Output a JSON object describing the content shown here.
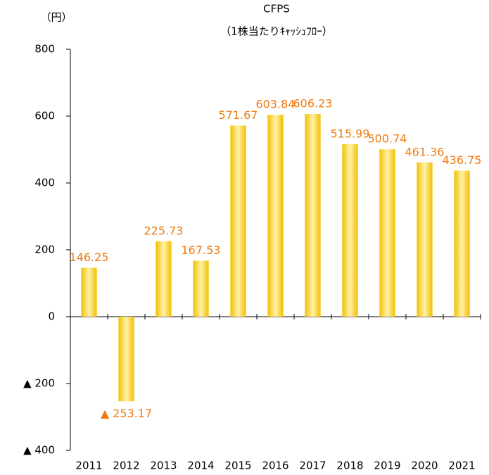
{
  "chart_data": {
    "type": "bar",
    "title": "CFPS",
    "subtitle": "（1株当たりｷｬｯｼｭﾌﾛｰ）",
    "y_unit": "（円）",
    "categories": [
      "2011",
      "2012",
      "2013",
      "2014",
      "2015",
      "2016",
      "2017",
      "2018",
      "2019",
      "2020",
      "2021"
    ],
    "values": [
      146.25,
      -253.17,
      225.73,
      167.53,
      571.67,
      603.84,
      606.23,
      515.99,
      500.74,
      461.36,
      436.75
    ],
    "value_labels": [
      "146.25",
      "▲ 253.17",
      "225.73",
      "167.53",
      "571.67",
      "603.84",
      "606.23",
      "515.99",
      "500.74",
      "461.36",
      "436.75"
    ],
    "color": "#f5c400",
    "ylim": [
      -400,
      800
    ],
    "yticks": [
      {
        "value": -400,
        "label": "▲ 400"
      },
      {
        "value": -200,
        "label": "▲ 200"
      },
      0,
      200,
      400,
      600,
      800
    ],
    "grid": false
  }
}
